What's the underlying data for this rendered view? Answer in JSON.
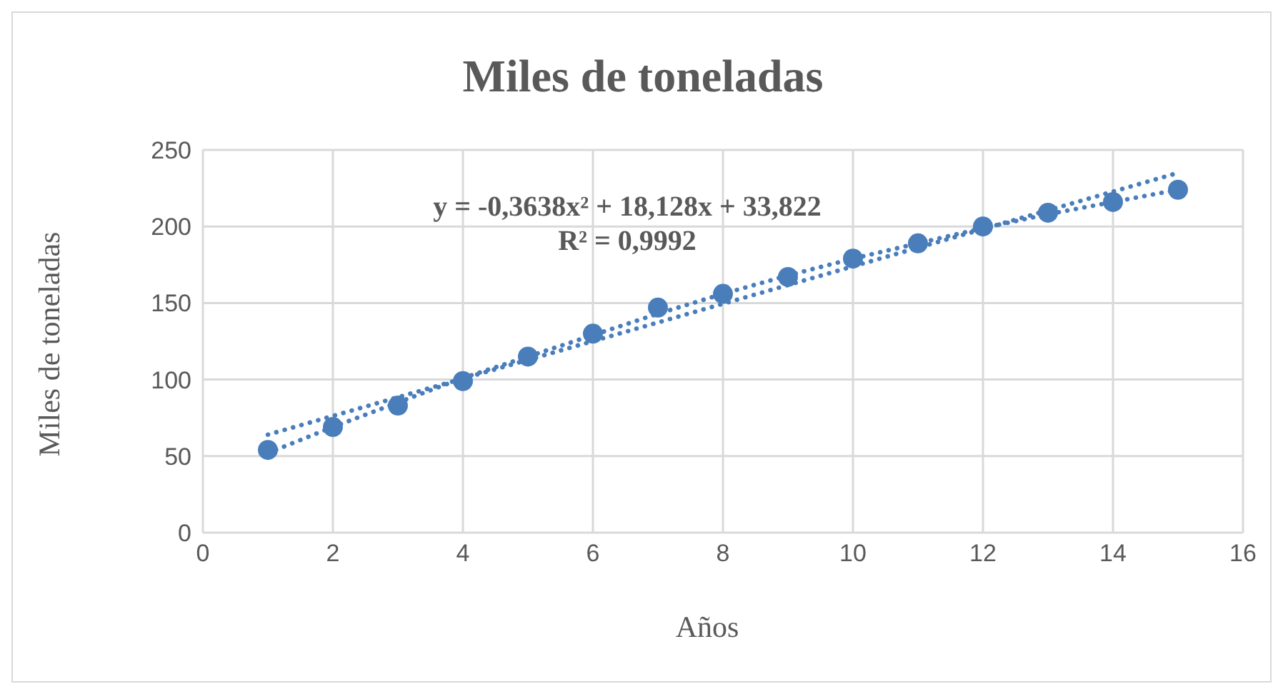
{
  "chart_data": {
    "type": "scatter",
    "title": "Miles de toneladas",
    "xlabel": "Años",
    "ylabel": "Miles de toneladas",
    "xlim": [
      0,
      16
    ],
    "xticks": [
      0,
      2,
      4,
      6,
      8,
      10,
      12,
      14,
      16
    ],
    "ylim": [
      0,
      250
    ],
    "yticks": [
      0,
      50,
      100,
      150,
      200,
      250
    ],
    "grid": true,
    "legend": false,
    "annotations": [
      "y = -0,3638x² + 18,128x + 33,822",
      "R² = 0,9992"
    ],
    "series": [
      {
        "color": "#4a7ebb",
        "marker": "circle",
        "x": [
          1,
          2,
          3,
          4,
          5,
          6,
          7,
          8,
          9,
          10,
          11,
          12,
          13,
          14,
          15
        ],
        "values": [
          54,
          69,
          83,
          99,
          115,
          130,
          147,
          156,
          167,
          179,
          189,
          200,
          209,
          216,
          224
        ]
      },
      {
        "type": "line",
        "color": "#4a7ebb",
        "marker": "none",
        "line_style": "dotted",
        "x": [
          1,
          15
        ],
        "values": [
          64,
          235
        ]
      },
      {
        "type": "line",
        "color": "#4a7ebb",
        "marker": "none",
        "line_style": "dotted",
        "x": [
          1,
          2,
          3,
          4,
          5,
          6,
          7,
          8,
          9,
          10,
          11,
          12,
          13,
          14,
          15
        ],
        "values": [
          52,
          69,
          85,
          101,
          115,
          129,
          143,
          156,
          168,
          179,
          189,
          199,
          208,
          216,
          224
        ]
      }
    ]
  }
}
